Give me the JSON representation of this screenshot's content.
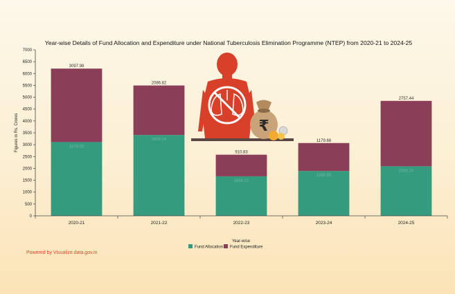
{
  "footer": {
    "powered_by": "Powered by Visualize.data.gov.in"
  },
  "colors": {
    "allocation": "#349b7f",
    "expenditure": "#8b3e58",
    "figure_red": "#d8402a",
    "sack": "#c9a478"
  },
  "illustration": {
    "icons": [
      "human-lungs-icon",
      "no-symbol-icon",
      "money-bag-icon",
      "rupee-icon",
      "coins-icon"
    ]
  },
  "chart_data": {
    "type": "bar",
    "stacked": true,
    "title": "Year-wise Details of Fund Allocation and Expenditure under National Tuberculosis Elimination Programme (NTEP) from 2020-21 to 2024-25",
    "xlabel": "Year-wise",
    "ylabel": "Figures in Rs. Crores",
    "ylim": [
      0,
      7000
    ],
    "yticks": [
      0,
      500,
      1000,
      1500,
      2000,
      2500,
      3000,
      3500,
      4000,
      4500,
      5000,
      5500,
      6000,
      6500,
      7000
    ],
    "categories": [
      "2020-21",
      "2021-22",
      "2022-23",
      "2023-24",
      "2024-25"
    ],
    "series": [
      {
        "name": "Fund Allocation",
        "values": [
          3109.55,
          3409.04,
          1666.21,
          1888.95,
          2089.33
        ],
        "labels": [
          "3109.55",
          "3409.04",
          "1666.21",
          "1888.95",
          "2089.33"
        ]
      },
      {
        "name": "Fund Expenditure",
        "values": [
          3097.98,
          2086.82,
          910.83,
          1179.68,
          2757.44
        ],
        "labels": [
          "3097.98",
          "2086.82",
          "910.83",
          "1179.68",
          "2757.44"
        ]
      }
    ],
    "legend_position": "bottom-center",
    "grid": false
  }
}
